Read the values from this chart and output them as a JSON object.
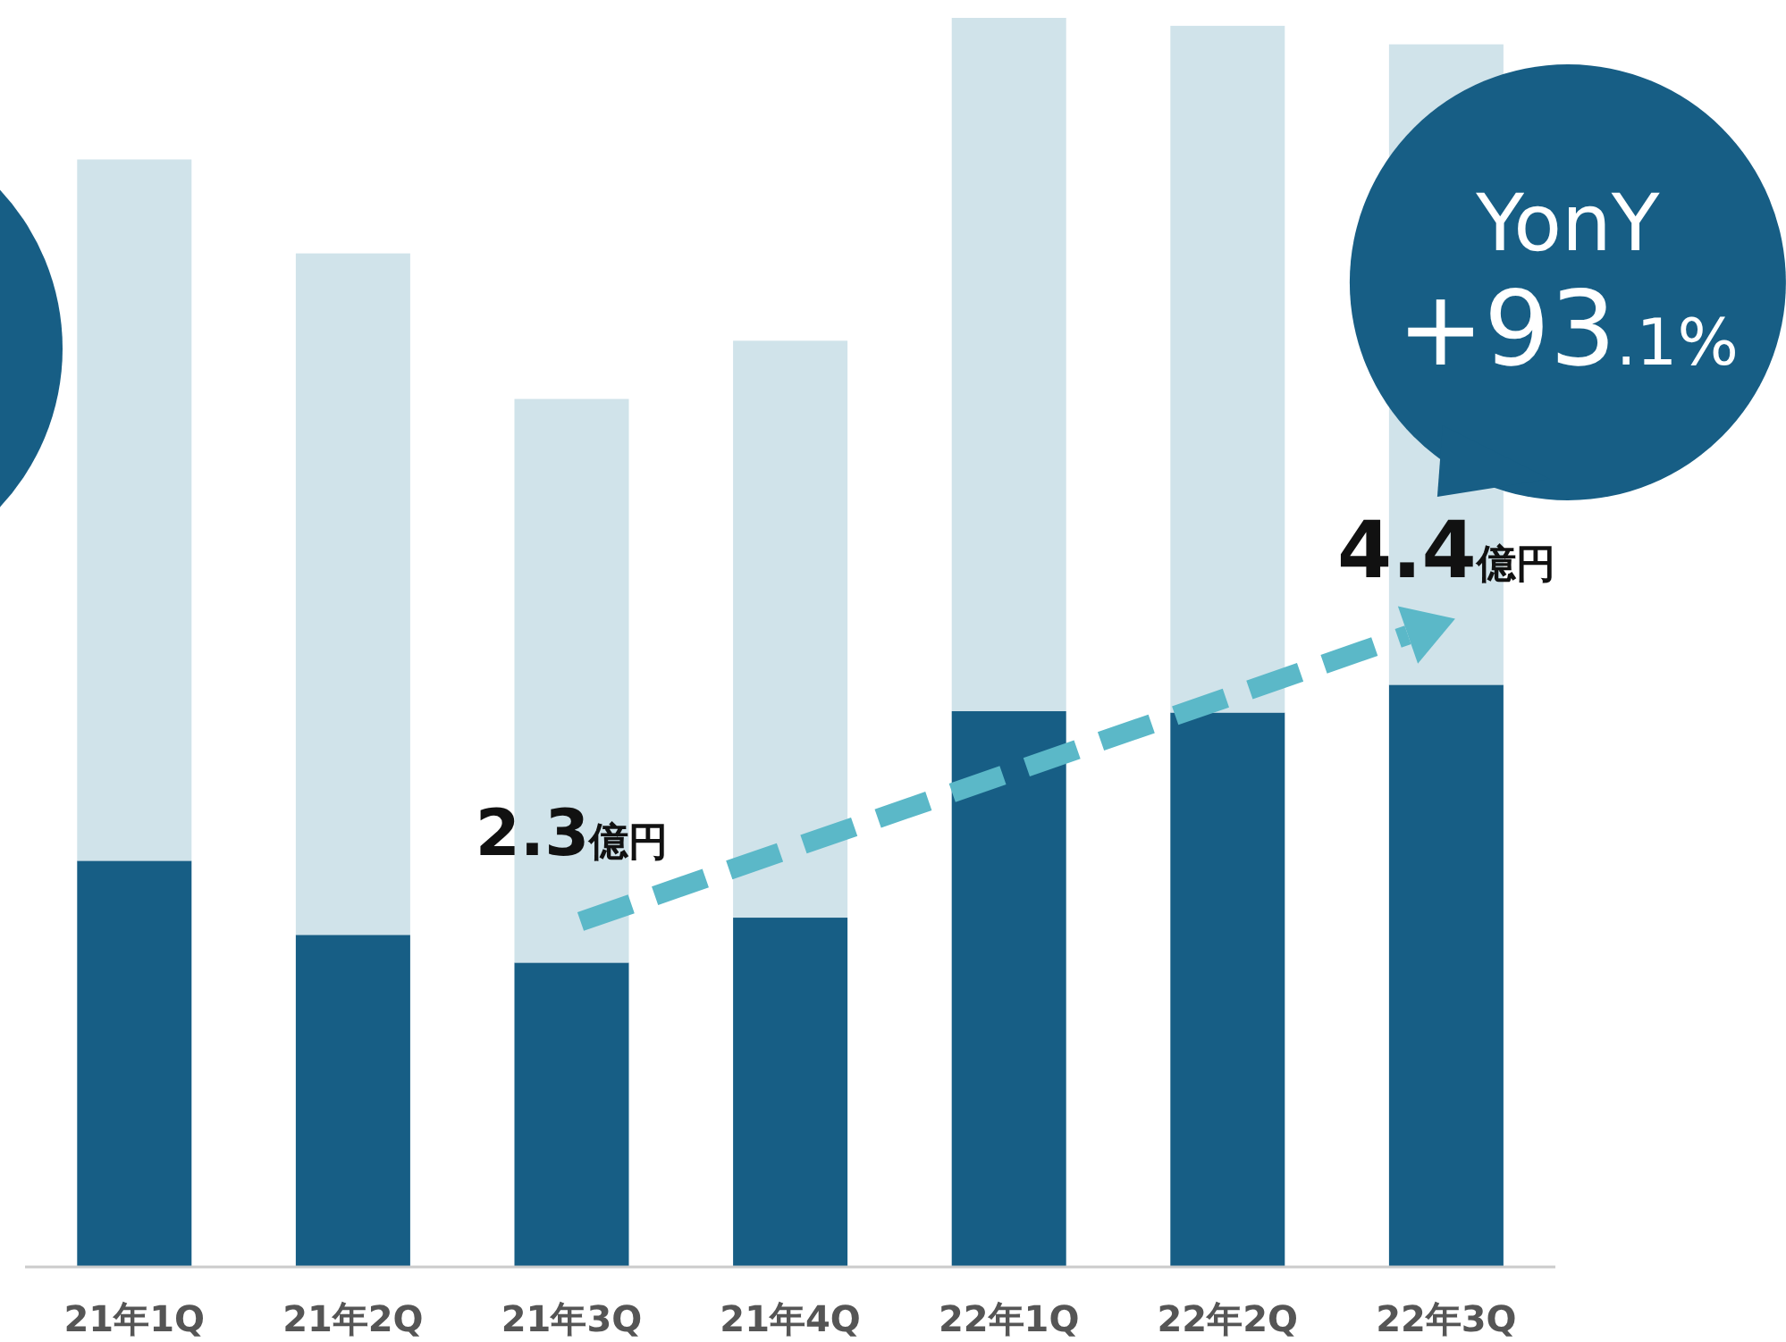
{
  "chart_data": {
    "type": "bar",
    "stacked": true,
    "categories": [
      "21年1Q",
      "21年2Q",
      "21年3Q",
      "21年4Q",
      "22年1Q",
      "22年2Q",
      "22年3Q"
    ],
    "series": [
      {
        "color": "#175e85",
        "values": [
          3.07,
          2.51,
          2.3,
          2.64,
          4.2,
          4.19,
          4.4
        ],
        "value_labels": [
          null,
          null,
          "2.3億円",
          null,
          null,
          null,
          "4.4億円"
        ]
      },
      {
        "color": "#d0e3ea",
        "values": [
          5.3,
          5.15,
          4.26,
          4.36,
          5.24,
          5.19,
          4.84
        ]
      }
    ],
    "annotations": [
      "YonY",
      "+93.1%"
    ]
  }
}
